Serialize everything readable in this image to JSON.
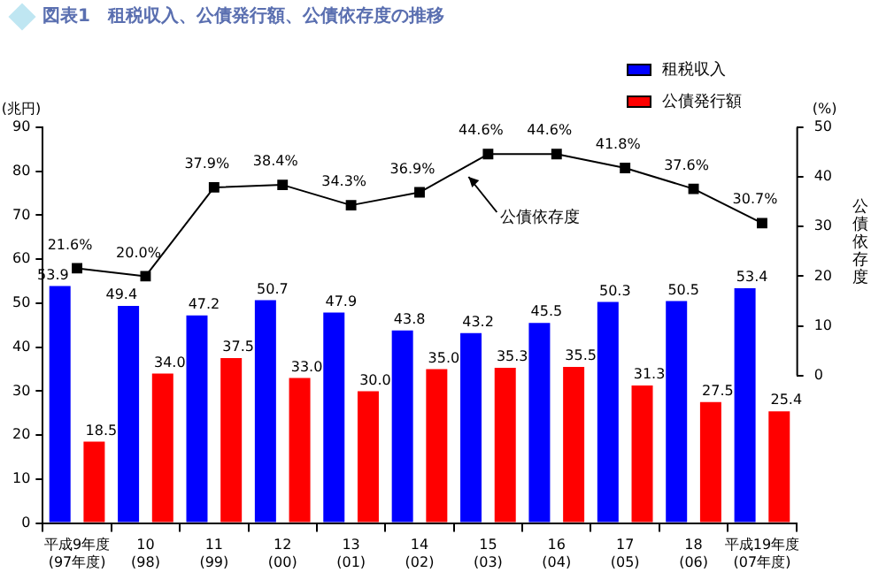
{
  "chart_data": {
    "type": "bar",
    "title": "図表1　租税収入、公債発行額、公債依存度の推移",
    "ylabel": "(兆円)",
    "y2label": "公債依存度",
    "categories": [
      "平成9年度\n(97年度)",
      "10\n(98)",
      "11\n(99)",
      "12\n(00)",
      "13\n(01)",
      "14\n(02)",
      "15\n(03)",
      "16\n(04)",
      "17\n(05)",
      "18\n(06)",
      "平成19年度\n(07年度)"
    ],
    "series": [
      {
        "name": "租税収入",
        "color": "#0000ff",
        "values": [
          53.9,
          49.4,
          47.2,
          50.7,
          47.9,
          43.8,
          43.2,
          45.5,
          50.3,
          50.5,
          53.4
        ],
        "value_labels": [
          "53.9",
          "49.4",
          "47.2",
          "50.7",
          "47.9",
          "43.8",
          "43.2",
          "45.5",
          "50.3",
          "50.5",
          "53.4"
        ]
      },
      {
        "name": "公債発行額",
        "color": "#ff0000",
        "values": [
          18.5,
          34.0,
          37.5,
          33.0,
          30.0,
          35.0,
          35.3,
          35.5,
          31.3,
          27.5,
          25.4
        ],
        "value_labels": [
          "18.5",
          "34.0",
          "37.5",
          "33.0",
          "30.0",
          "35.0",
          "35.3",
          "35.5",
          "31.3",
          "27.5",
          "25.4"
        ]
      },
      {
        "type": "line",
        "axis": "y2",
        "color": "#000000",
        "values": [
          21.6,
          20.0,
          37.9,
          38.4,
          34.3,
          36.9,
          44.6,
          44.6,
          41.8,
          37.6,
          30.7
        ],
        "value_labels": [
          "21.6%",
          "20.0%",
          "37.9%",
          "38.4%",
          "34.3%",
          "36.9%",
          "44.6%",
          "44.6%",
          "41.8%",
          "37.6%",
          "30.7%"
        ]
      }
    ],
    "ylim": [
      0,
      90
    ],
    "yticks": [
      0,
      10,
      20,
      30,
      40,
      50,
      60,
      70,
      80,
      90
    ],
    "y2lim": [
      0,
      50
    ],
    "y2ticks": [
      0,
      10,
      20,
      30,
      40,
      50
    ],
    "marker": "square",
    "grid": false,
    "legend": "top right",
    "annotations": [
      "(%)",
      "公債依存度"
    ]
  }
}
